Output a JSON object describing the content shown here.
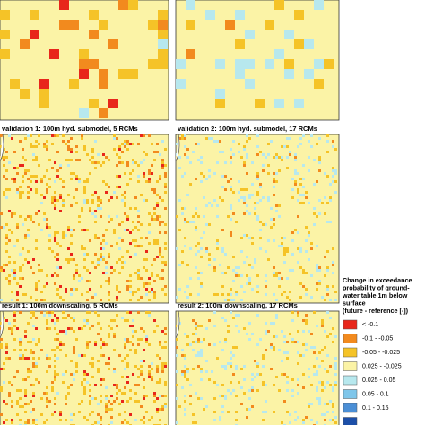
{
  "panels": [
    {
      "caption": "validation 1: 100m hyd. submodel, 5 RCMs"
    },
    {
      "caption": "validation 2: 100m hyd. submodel, 17 RCMs"
    },
    {
      "caption": "result 1: 100m downscaling, 5 RCMs"
    },
    {
      "caption": "result 2: 100m downscaling, 17 RCMs"
    }
  ],
  "legend": {
    "title_lines": [
      "Change in exceedance",
      "probability of ground-",
      "water table 1m below",
      "surface",
      "(future - reference [-])"
    ],
    "items": [
      {
        "label": "< -0.1",
        "color": "#e8261b"
      },
      {
        "label": "-0.1 - -0.05",
        "color": "#f28a1e"
      },
      {
        "label": "-0.05 - -0.025",
        "color": "#f5c327"
      },
      {
        "label": "0.025 - -0.025",
        "color": "#fbf3a6"
      },
      {
        "label": "0.025 - 0.05",
        "color": "#b7e8ee"
      },
      {
        "label": "0.05 - 0.1",
        "color": "#7fc6ea"
      },
      {
        "label": "0.1 - 0.15",
        "color": "#4b8fd6"
      },
      {
        "color": "#1d4fa8"
      }
    ]
  }
}
